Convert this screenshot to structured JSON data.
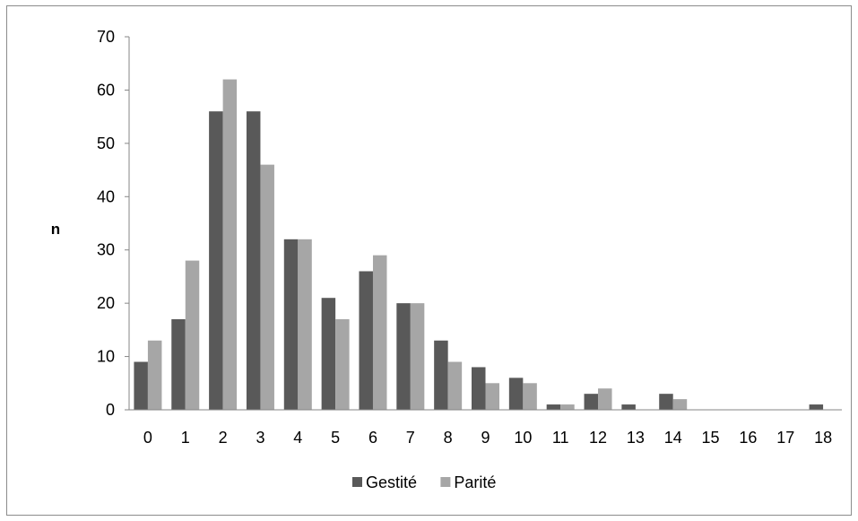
{
  "chart_data": {
    "type": "bar",
    "title": "",
    "xlabel": "",
    "ylabel": "n",
    "ylim": [
      0,
      70
    ],
    "yticks": [
      0,
      10,
      20,
      30,
      40,
      50,
      60,
      70
    ],
    "grid": false,
    "legend_position": "bottom",
    "categories": [
      "0",
      "1",
      "2",
      "3",
      "4",
      "5",
      "6",
      "7",
      "8",
      "9",
      "10",
      "11",
      "12",
      "13",
      "14",
      "15",
      "16",
      "17",
      "18"
    ],
    "series": [
      {
        "name": "Gestité",
        "color": "#595959",
        "values": [
          9,
          17,
          56,
          56,
          32,
          21,
          26,
          20,
          13,
          8,
          6,
          1,
          3,
          1,
          3,
          0,
          0,
          0,
          1
        ]
      },
      {
        "name": "Parité",
        "color": "#a6a6a6",
        "values": [
          13,
          28,
          62,
          46,
          32,
          17,
          29,
          20,
          9,
          5,
          5,
          1,
          4,
          0,
          2,
          0,
          0,
          0,
          0
        ]
      }
    ]
  }
}
